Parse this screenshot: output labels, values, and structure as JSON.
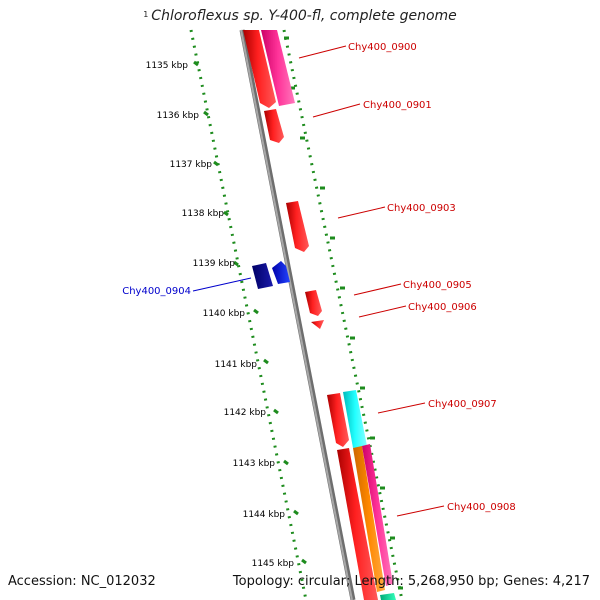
{
  "title": {
    "superscript": "1",
    "text": "Chloroflexus sp. Y-400-fl, complete genome"
  },
  "footer": {
    "accession": "Accession: NC_012032",
    "topology": "Topology: circular; Length: 5,268,950 bp; Genes: 4,217"
  },
  "ruler_labels": [
    "1135 kbp",
    "1136 kbp",
    "1137 kbp",
    "1138 kbp",
    "1139 kbp",
    "1140 kbp",
    "1141 kbp",
    "1142 kbp",
    "1143 kbp",
    "1144 kbp",
    "1145 kbp"
  ],
  "colors": {
    "backbone": "#8c8c8c",
    "ruler_dots": "#1e8c1e",
    "forward_label": "#cc0000",
    "reverse_label": "#0000cc",
    "red": "#ff0000",
    "magenta": "#ff3399",
    "cyan": "#00ffff",
    "orange": "#ff8800",
    "blue": "#0000cc",
    "navy": "#000088"
  },
  "genes": [
    {
      "label": "Chy400_0900",
      "strand": "forward",
      "color": "red"
    },
    {
      "label": "Chy400_0901",
      "strand": "forward",
      "color": "red"
    },
    {
      "label": "Chy400_0903",
      "strand": "forward",
      "color": "red"
    },
    {
      "label": "Chy400_0904",
      "strand": "reverse",
      "color": "navy"
    },
    {
      "label": "Chy400_0905",
      "strand": "forward",
      "color": "red"
    },
    {
      "label": "Chy400_0906",
      "strand": "forward",
      "color": "red"
    },
    {
      "label": "Chy400_0907",
      "strand": "forward",
      "color": "cyan"
    },
    {
      "label": "Chy400_0908",
      "strand": "forward",
      "color": "red"
    }
  ]
}
